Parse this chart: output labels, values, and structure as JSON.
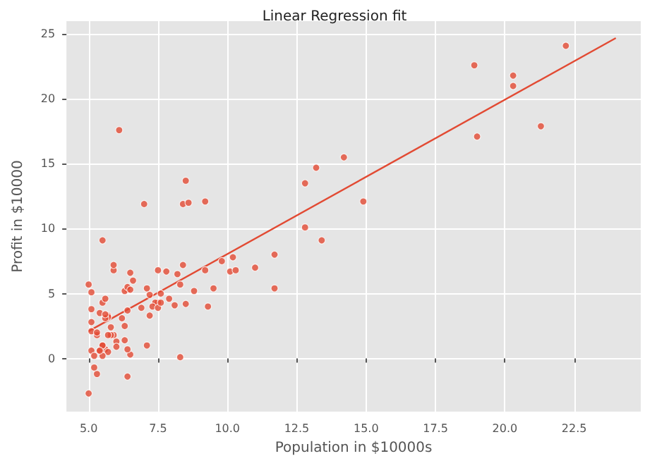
{
  "chart_data": {
    "type": "scatter",
    "title": "Linear Regression fit",
    "xlabel": "Population in $10000s",
    "ylabel": "Profit in $10000",
    "grid": true,
    "marker": "circle",
    "xlim": [
      4.2,
      24.9
    ],
    "ylim": [
      -4.1,
      26
    ],
    "xticks": [
      {
        "value": 5,
        "label": "5.0"
      },
      {
        "value": 7.5,
        "label": "7.5"
      },
      {
        "value": 10,
        "label": "10.0"
      },
      {
        "value": 12.5,
        "label": "12.5"
      },
      {
        "value": 15,
        "label": "15.0"
      },
      {
        "value": 17.5,
        "label": "17.5"
      },
      {
        "value": 20,
        "label": "20.0"
      },
      {
        "value": 22.5,
        "label": "22.5"
      }
    ],
    "yticks": [
      0,
      5,
      10,
      15,
      20,
      25
    ],
    "series": [
      {
        "color": "#e24a33",
        "x": [
          6.1,
          5.5,
          8.5,
          7.0,
          5.9,
          8.4,
          7.5,
          8.6,
          6.5,
          5.1,
          5.7,
          14.2,
          5.7,
          8.4,
          5.6,
          5.4,
          6.4,
          5.1,
          6.4,
          7.1,
          6.2,
          20.3,
          5.5,
          6.3,
          5.6,
          18.9,
          12.8,
          11.0,
          13.2,
          22.2,
          5.3,
          6.6,
          9.2,
          5.9,
          8.2,
          7.9,
          8.1,
          5.6,
          12.8,
          6.4,
          5.4,
          6.9,
          11.7,
          5.8,
          7.8,
          7.1,
          5.1,
          5.8,
          11.7,
          5.5,
          7.5,
          5.3,
          7.4,
          7.6,
          6.3,
          6.4,
          6.3,
          5.6,
          9.3,
          9.5,
          8.8,
          5.2,
          21.3,
          14.9,
          19.0,
          7.2,
          8.3,
          10.2,
          5.5,
          20.3,
          10.1,
          7.3,
          6.0,
          7.2,
          5.0,
          6.5,
          7.5,
          5.0,
          10.3,
          5.1,
          5.7,
          5.2,
          6.4,
          9.8,
          6.5,
          8.5,
          9.2,
          6.0,
          5.5,
          5.1,
          5.7,
          7.6,
          5.9,
          5.3,
          8.3,
          13.4,
          5.4
        ],
        "values": [
          17.6,
          9.1,
          13.7,
          11.9,
          6.8,
          11.9,
          4.3,
          12.0,
          6.6,
          3.8,
          3.3,
          15.5,
          3.2,
          7.2,
          0.7,
          3.5,
          5.3,
          0.6,
          3.7,
          5.4,
          3.1,
          21.8,
          4.3,
          5.2,
          3.1,
          22.6,
          13.5,
          7.0,
          14.7,
          24.1,
          -1.2,
          6.0,
          12.1,
          1.8,
          6.5,
          4.6,
          4.1,
          3.4,
          10.1,
          5.5,
          0.6,
          3.9,
          5.4,
          2.4,
          6.7,
          1.0,
          5.1,
          1.8,
          8.0,
          1.0,
          6.8,
          1.8,
          4.3,
          5.0,
          1.4,
          -1.4,
          2.5,
          4.6,
          4.0,
          5.4,
          5.2,
          -0.7,
          17.9,
          12.1,
          17.1,
          4.9,
          5.7,
          7.8,
          1.0,
          21.0,
          6.7,
          4.0,
          1.3,
          3.3,
          -2.7,
          0.3,
          3.9,
          5.7,
          6.8,
          2.1,
          0.5,
          0.2,
          0.7,
          7.5,
          5.3,
          4.2,
          6.8,
          0.9,
          0.2,
          2.8,
          1.8,
          4.3,
          7.2,
          2.0,
          0.1,
          9.1,
          0.6
        ]
      },
      {
        "type": "line",
        "marker": "none",
        "color": "#e24a33",
        "x": [
          5.0,
          24.0
        ],
        "values": [
          2.1,
          24.7
        ]
      }
    ]
  }
}
